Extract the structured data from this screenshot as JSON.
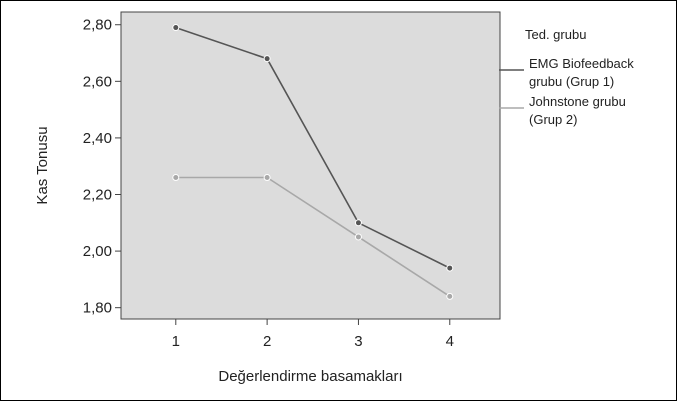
{
  "chart_data": {
    "type": "line",
    "title": "",
    "xlabel": "Değerlendirme basamakları",
    "ylabel": "Kas Tonusu",
    "x": [
      1,
      2,
      3,
      4
    ],
    "x_tick_labels": [
      "1",
      "2",
      "3",
      "4"
    ],
    "xlim": [
      0.4,
      4.55
    ],
    "ylim": [
      1.76,
      2.845
    ],
    "y_ticks": [
      1.8,
      2.0,
      2.2,
      2.4,
      2.6,
      2.8
    ],
    "y_tick_labels": [
      "1,80",
      "2,00",
      "2,20",
      "2,40",
      "2,60",
      "2,80"
    ],
    "grid": false,
    "plot_background": "#dcdcdc",
    "legend": {
      "title": "Ted. grubu",
      "placement": "right",
      "entries": [
        {
          "lines": [
            "EMG Biofeedback",
            "grubu (Grup 1)"
          ],
          "series_index": 0
        },
        {
          "lines": [
            "Johnstone grubu",
            "(Grup 2)"
          ],
          "series_index": 1
        }
      ]
    },
    "series": [
      {
        "name": "EMG Biofeedback grubu (Grup 1)",
        "values": [
          2.79,
          2.68,
          2.1,
          1.94
        ],
        "color": "#555555"
      },
      {
        "name": "Johnstone grubu (Grup 2)",
        "values": [
          2.26,
          2.26,
          2.05,
          1.84
        ],
        "color": "#a8a8a8"
      }
    ]
  }
}
